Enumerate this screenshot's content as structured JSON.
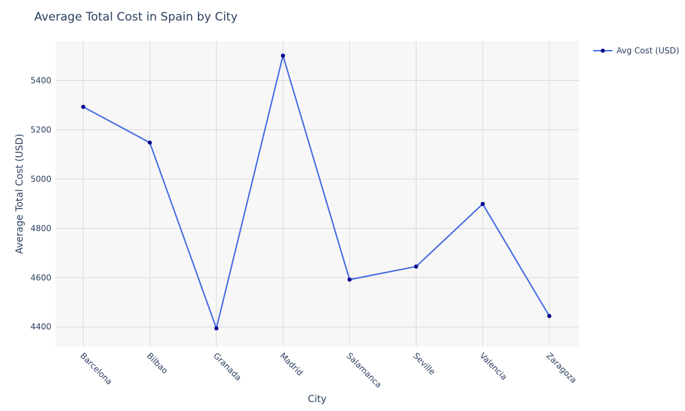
{
  "chart_data": {
    "type": "line",
    "title": "Average Total Cost in Spain by City",
    "xlabel": "City",
    "ylabel": "Average Total Cost (USD)",
    "categories": [
      "Barcelona",
      "Bilbao",
      "Granada",
      "Madrid",
      "Salamanca",
      "Seville",
      "Valencia",
      "Zaragoza"
    ],
    "series": [
      {
        "name": "Avg Cost (USD)",
        "values": [
          5293,
          5148,
          4394,
          5501,
          4592,
          4645,
          4899,
          4444
        ],
        "line_color": "#4169e1",
        "marker_color": "#00008b"
      }
    ],
    "y_ticks": [
      4400,
      4600,
      4800,
      5000,
      5200,
      5400
    ],
    "ylim": [
      4320,
      5560
    ],
    "grid": true,
    "plot_background": "#f7f7f7",
    "grid_color": "#d9d9d9",
    "legend_position": "top-right"
  }
}
